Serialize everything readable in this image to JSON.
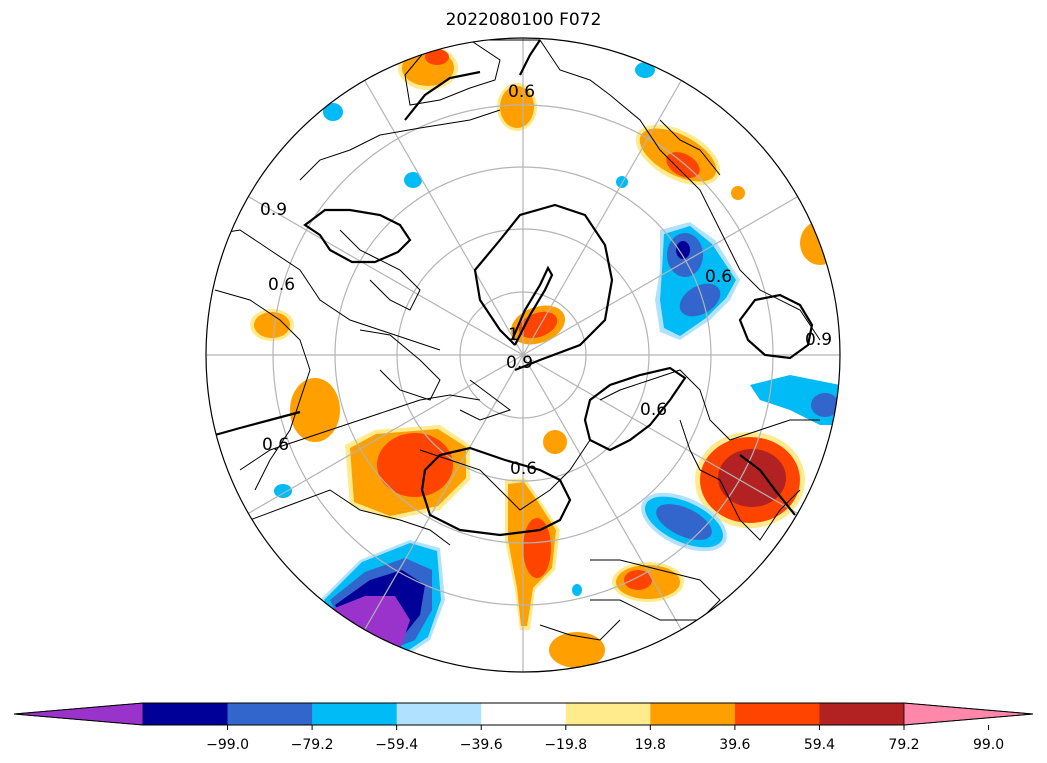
{
  "title": "2022080100 F072",
  "map": {
    "projection": "north-polar-stereographic",
    "contour_labels": [
      "0.6",
      "0.9",
      "0.6",
      "0.6",
      "0.6",
      "0.9",
      "0.6",
      "0.6",
      "0.9",
      "1"
    ]
  },
  "colorbar": {
    "orientation": "horizontal",
    "extend": "both",
    "tick_labels": [
      "−99.0",
      "−79.2",
      "−59.4",
      "−39.6",
      "−19.8",
      "19.8",
      "39.6",
      "59.4",
      "79.2",
      "99.0"
    ],
    "colors": [
      "#9933cc",
      "#000099",
      "#3366cc",
      "#00bbf5",
      "#b0e2ff",
      "#ffffff",
      "#ffea8c",
      "#ffa000",
      "#ff4400",
      "#b22222",
      "#ff88aa"
    ]
  },
  "colors": {
    "purple": "#9933cc",
    "navy": "#000099",
    "blue": "#3366cc",
    "cyan": "#00bbf5",
    "lightblue": "#b0e2ff",
    "yellow": "#ffea8c",
    "orange": "#ffa000",
    "redorange": "#ff4400",
    "darkred": "#b22222"
  }
}
